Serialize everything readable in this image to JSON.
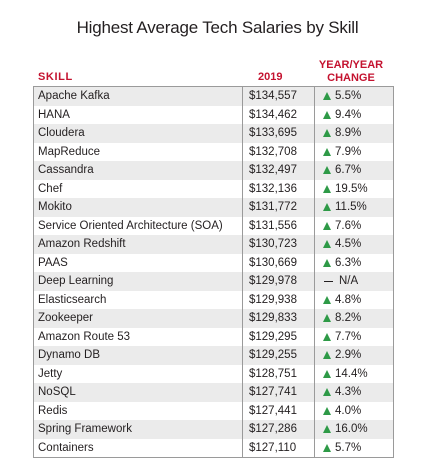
{
  "chart_data": {
    "type": "table",
    "title": "Highest Average Tech Salaries by Skill",
    "columns": [
      "SKILL",
      "2019",
      "YEAR/YEAR\nCHANGE"
    ],
    "header_color": "#c4122f",
    "up_color": "#2e9a47",
    "rows": [
      {
        "skill": "Apache Kafka",
        "salary": "$134,557",
        "salary_value": 134557,
        "change": "5.5%",
        "direction": "up"
      },
      {
        "skill": "HANA",
        "salary": "$134,462",
        "salary_value": 134462,
        "change": "9.4%",
        "direction": "up"
      },
      {
        "skill": "Cloudera",
        "salary": "$133,695",
        "salary_value": 133695,
        "change": "8.9%",
        "direction": "up"
      },
      {
        "skill": "MapReduce",
        "salary": "$132,708",
        "salary_value": 132708,
        "change": "7.9%",
        "direction": "up"
      },
      {
        "skill": "Cassandra",
        "salary": "$132,497",
        "salary_value": 132497,
        "change": "6.7%",
        "direction": "up"
      },
      {
        "skill": "Chef",
        "salary": "$132,136",
        "salary_value": 132136,
        "change": "19.5%",
        "direction": "up"
      },
      {
        "skill": "Mokito",
        "salary": "$131,772",
        "salary_value": 131772,
        "change": "11.5%",
        "direction": "up"
      },
      {
        "skill": "Service Oriented Architecture (SOA)",
        "salary": "$131,556",
        "salary_value": 131556,
        "change": "7.6%",
        "direction": "up"
      },
      {
        "skill": "Amazon Redshift",
        "salary": "$130,723",
        "salary_value": 130723,
        "change": "4.5%",
        "direction": "up"
      },
      {
        "skill": "PAAS",
        "salary": "$130,669",
        "salary_value": 130669,
        "change": "6.3%",
        "direction": "up"
      },
      {
        "skill": "Deep Learning",
        "salary": "$129,978",
        "salary_value": 129978,
        "change": "N/A",
        "direction": "none"
      },
      {
        "skill": "Elasticsearch",
        "salary": "$129,938",
        "salary_value": 129938,
        "change": "4.8%",
        "direction": "up"
      },
      {
        "skill": "Zookeeper",
        "salary": "$129,833",
        "salary_value": 129833,
        "change": "8.2%",
        "direction": "up"
      },
      {
        "skill": "Amazon Route 53",
        "salary": "$129,295",
        "salary_value": 129295,
        "change": "7.7%",
        "direction": "up"
      },
      {
        "skill": "Dynamo DB",
        "salary": "$129,255",
        "salary_value": 129255,
        "change": "2.9%",
        "direction": "up"
      },
      {
        "skill": "Jetty",
        "salary": "$128,751",
        "salary_value": 128751,
        "change": "14.4%",
        "direction": "up"
      },
      {
        "skill": "NoSQL",
        "salary": "$127,741",
        "salary_value": 127741,
        "change": "4.3%",
        "direction": "up"
      },
      {
        "skill": "Redis",
        "salary": "$127,441",
        "salary_value": 127441,
        "change": "4.0%",
        "direction": "up"
      },
      {
        "skill": "Spring Framework",
        "salary": "$127,286",
        "salary_value": 127286,
        "change": "16.0%",
        "direction": "up"
      },
      {
        "skill": "Containers",
        "salary": "$127,110",
        "salary_value": 127110,
        "change": "5.7%",
        "direction": "up"
      }
    ]
  }
}
